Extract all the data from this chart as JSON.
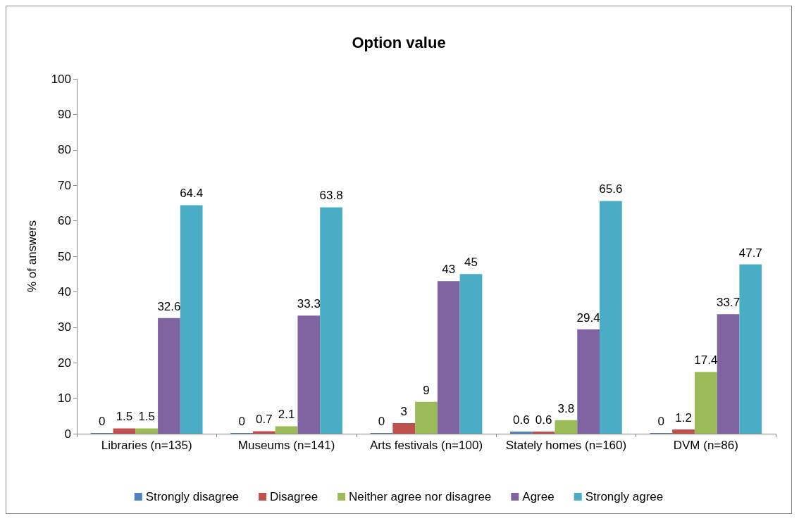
{
  "chart_data": {
    "type": "bar",
    "title": "Option value",
    "ylabel": "% of answers",
    "categories": [
      "Libraries (n=135)",
      "Museums (n=141)",
      "Arts festivals (n=100)",
      "Stately homes (n=160)",
      "DVM (n=86)"
    ],
    "series": [
      {
        "name": "Strongly disagree",
        "color": "#4f81bd",
        "values": [
          0,
          0,
          0,
          0.6,
          0
        ]
      },
      {
        "name": "Disagree",
        "color": "#c0504d",
        "values": [
          1.5,
          0.7,
          3,
          0.6,
          1.2
        ]
      },
      {
        "name": "Neither agree nor disagree",
        "color": "#9bbb59",
        "values": [
          1.5,
          2.1,
          9,
          3.8,
          17.4
        ]
      },
      {
        "name": "Agree",
        "color": "#8064a2",
        "values": [
          32.6,
          33.3,
          43,
          29.4,
          33.7
        ]
      },
      {
        "name": "Strongly agree",
        "color": "#4bacc6",
        "values": [
          64.4,
          63.8,
          45,
          65.6,
          47.7
        ]
      }
    ],
    "ylim": [
      0,
      100
    ],
    "yticks": [
      0,
      10,
      20,
      30,
      40,
      50,
      60,
      70,
      80,
      90,
      100
    ],
    "grid": false,
    "legend": "bottom",
    "data_labels": true
  }
}
